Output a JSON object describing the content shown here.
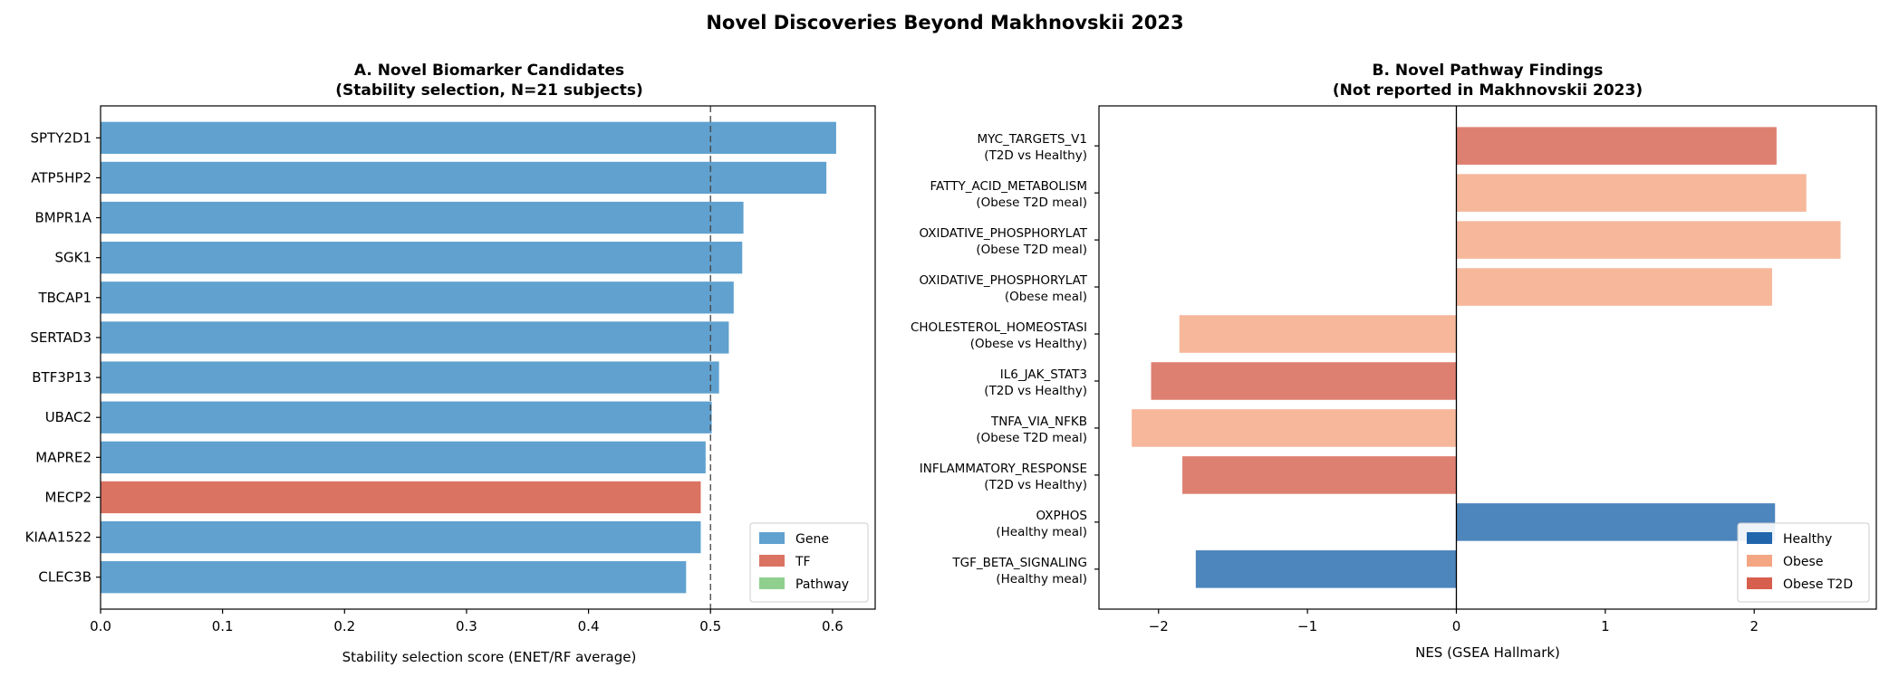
{
  "colors": {
    "gene": "#4a94c8",
    "tf": "#d6604d",
    "pathway": "#7fc97f",
    "healthy": "#2166ac",
    "obese": "#f4a582",
    "obese_t2d": "#d6604d"
  },
  "figure_title": "Novel Discoveries Beyond Makhnovskii 2023",
  "chart_data": [
    {
      "type": "bar",
      "orientation": "horizontal",
      "title_line1": "A. Novel Biomarker Candidates",
      "title_line2": "(Stability selection, N=21 subjects)",
      "xlabel": "Stability selection score (ENET/RF average)",
      "ylabel": "",
      "xlim": [
        0.0,
        0.635
      ],
      "xticks": [
        "0.0",
        "0.1",
        "0.2",
        "0.3",
        "0.4",
        "0.5",
        "0.6"
      ],
      "threshold": 0.5,
      "categories": [
        "SPTY2D1",
        "ATP5HP2",
        "BMPR1A",
        "SGK1",
        "TBCAP1",
        "SERTAD3",
        "BTF3P13",
        "UBAC2",
        "MAPRE2",
        "MECP2",
        "KIAA1522",
        "CLEC3B"
      ],
      "values": [
        0.603,
        0.595,
        0.527,
        0.526,
        0.519,
        0.515,
        0.507,
        0.501,
        0.496,
        0.492,
        0.492,
        0.48
      ],
      "types": [
        "Gene",
        "Gene",
        "Gene",
        "Gene",
        "Gene",
        "Gene",
        "Gene",
        "Gene",
        "Gene",
        "TF",
        "Gene",
        "Gene"
      ],
      "legend": [
        {
          "label": "Gene",
          "color_key": "gene"
        },
        {
          "label": "TF",
          "color_key": "tf"
        },
        {
          "label": "Pathway",
          "color_key": "pathway"
        }
      ],
      "legend_position": "lower-right",
      "grid": false
    },
    {
      "type": "bar",
      "orientation": "horizontal",
      "title_line1": "B. Novel Pathway Findings",
      "title_line2": "(Not reported in Makhnovskii 2023)",
      "xlabel": "NES (GSEA Hallmark)",
      "ylabel": "",
      "xlim": [
        -2.4,
        2.82
      ],
      "xticks": [
        "−2",
        "−1",
        "0",
        "1",
        "2"
      ],
      "categories": [
        {
          "name": "MYC_TARGETS_V1",
          "comparison": "(T2D vs Healthy)"
        },
        {
          "name": "FATTY_ACID_METABOLISM",
          "comparison": "(Obese T2D meal)"
        },
        {
          "name": "OXIDATIVE_PHOSPHORYLAT",
          "comparison": "(Obese T2D meal)"
        },
        {
          "name": "OXIDATIVE_PHOSPHORYLAT",
          "comparison": "(Obese meal)"
        },
        {
          "name": "CHOLESTEROL_HOMEOSTASI",
          "comparison": "(Obese vs Healthy)"
        },
        {
          "name": "IL6_JAK_STAT3",
          "comparison": "(T2D vs Healthy)"
        },
        {
          "name": "TNFA_VIA_NFKB",
          "comparison": "(Obese T2D meal)"
        },
        {
          "name": "INFLAMMATORY_RESPONSE",
          "comparison": "(T2D vs Healthy)"
        },
        {
          "name": "OXPHOS",
          "comparison": "(Healthy meal)"
        },
        {
          "name": "TGF_BETA_SIGNALING",
          "comparison": "(Healthy meal)"
        }
      ],
      "values": [
        2.15,
        2.35,
        2.58,
        2.12,
        -1.86,
        -2.05,
        -2.18,
        -1.84,
        2.14,
        -1.75
      ],
      "groups": [
        "obese_t2d",
        "obese",
        "obese",
        "obese",
        "obese",
        "obese_t2d",
        "obese",
        "obese_t2d",
        "healthy",
        "healthy"
      ],
      "legend": [
        {
          "label": "Healthy",
          "color_key": "healthy"
        },
        {
          "label": "Obese",
          "color_key": "obese"
        },
        {
          "label": "Obese T2D",
          "color_key": "obese_t2d"
        }
      ],
      "legend_position": "lower-right",
      "grid": false
    }
  ]
}
